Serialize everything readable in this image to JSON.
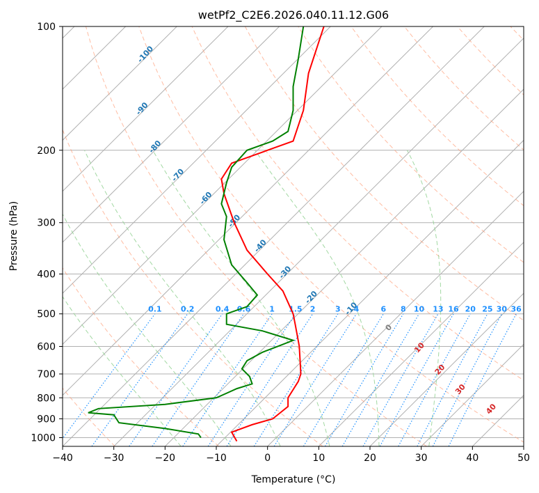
{
  "chart_data": {
    "type": "line",
    "title": "wetPf2_C2E6.2026.040.11.12.G06",
    "xlabel": "Temperature (°C)",
    "ylabel": "Pressure (hPa)",
    "xlim": [
      -40,
      50
    ],
    "ylim": [
      1050,
      100
    ],
    "y_scale": "log",
    "x_ticks": [
      -40,
      -30,
      -20,
      -10,
      0,
      10,
      20,
      30,
      40,
      50
    ],
    "y_ticks": [
      1000,
      900,
      800,
      700,
      600,
      500,
      400,
      300,
      200,
      100
    ],
    "grid": true,
    "legend": "none",
    "series": [
      {
        "color": "#ff0000",
        "x": [
          -6,
          -7,
          -3,
          1,
          4,
          4,
          6,
          6.5,
          6.2,
          5.4,
          5,
          3,
          0,
          -4,
          -6.5,
          -8.5,
          -9,
          -7,
          5,
          7,
          8,
          11
        ],
        "y": [
          1020,
          970,
          930,
          900,
          840,
          800,
          730,
          700,
          600,
          530,
          500,
          440,
          400,
          350,
          300,
          255,
          235,
          215,
          190,
          160,
          130,
          100
        ]
      },
      {
        "color": "#008000",
        "x": [
          -13,
          -13.5,
          -20,
          -29,
          -30,
          -35,
          -33,
          -20,
          -10,
          -8,
          -6,
          -3,
          -3.5,
          -5,
          -4,
          -1,
          2,
          5,
          -1,
          -8,
          -8,
          -4,
          -2,
          -4,
          -7,
          -8.5,
          -8,
          -9,
          -8,
          -7,
          -4,
          1,
          4,
          5,
          5,
          6,
          7
        ],
        "y": [
          1000,
          980,
          950,
          920,
          880,
          870,
          850,
          830,
          800,
          780,
          760,
          740,
          710,
          680,
          650,
          620,
          600,
          580,
          550,
          530,
          500,
          480,
          450,
          420,
          380,
          330,
          290,
          270,
          240,
          220,
          200,
          190,
          180,
          160,
          140,
          120,
          100
        ]
      }
    ],
    "dry_adiabats_K": [
      180,
      200,
      220,
      240,
      260,
      280,
      300,
      320,
      340,
      360,
      380,
      400,
      420,
      440,
      460,
      480,
      500
    ],
    "moist_adiabats_C": [
      -20,
      -10,
      0,
      10,
      20,
      30
    ],
    "temperature_isotherm_labels": [
      "-100",
      "-90",
      "-80",
      "-70",
      "-60",
      "-50",
      "-40",
      "-30",
      "-20",
      "-10"
    ],
    "mixing_ratio_labels": [
      "0.1",
      "0.2",
      "0.4",
      "0.6",
      "1",
      "1.5",
      "2",
      "3",
      "4",
      "6",
      "8",
      "10",
      "13",
      "16",
      "20",
      "25",
      "30",
      "36"
    ],
    "mixing_ratio_values": [
      0.1,
      0.2,
      0.4,
      0.6,
      1,
      1.5,
      2,
      3,
      4,
      6,
      8,
      10,
      13,
      16,
      20,
      25,
      30,
      36
    ],
    "theta_e_labels": [
      "0",
      "10",
      "20",
      "30",
      "40"
    ],
    "colors": {
      "temperature": "#ff0000",
      "dewpoint": "#008000",
      "isotherm": "#7f7f7f",
      "dry_adiabat": "#ffa07a",
      "moist_adiabat": "#98d498",
      "mixing_ratio": "#1e90ff",
      "isotherm_label": "#1f77b4",
      "theta_e_label": "#d62728",
      "grid": "#b0b0b0"
    }
  }
}
